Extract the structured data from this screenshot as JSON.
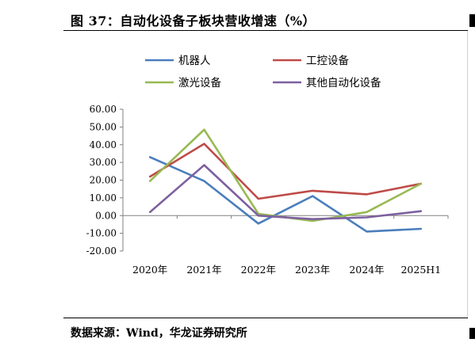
{
  "figure": {
    "title": "图 37：自动化设备子板块营收增速（%）",
    "source": "数据来源：Wind，华龙证券研究所"
  },
  "chart_data": {
    "type": "line",
    "categories": [
      "2020年",
      "2021年",
      "2022年",
      "2023年",
      "2024年",
      "2025H1"
    ],
    "ylim": [
      -20,
      60
    ],
    "yticks": [
      "60.00",
      "50.00",
      "40.00",
      "30.00",
      "20.00",
      "10.00",
      "0.00",
      "-10.00",
      "-20.00"
    ],
    "legend_position": "top",
    "grid": false,
    "series": [
      {
        "name": "机器人",
        "color": "#4a7ebb",
        "values": [
          33,
          19.5,
          -4.5,
          11,
          -9,
          -7.5
        ]
      },
      {
        "name": "工控设备",
        "color": "#be4b48",
        "values": [
          22,
          40.5,
          9.5,
          14,
          12,
          18
        ]
      },
      {
        "name": "激光设备",
        "color": "#98b954",
        "values": [
          19.5,
          48.5,
          1,
          -3,
          2,
          18
        ]
      },
      {
        "name": "其他自动化设备",
        "color": "#7d60a0",
        "values": [
          2,
          28.5,
          0,
          -2,
          -1,
          2.5
        ]
      }
    ]
  }
}
